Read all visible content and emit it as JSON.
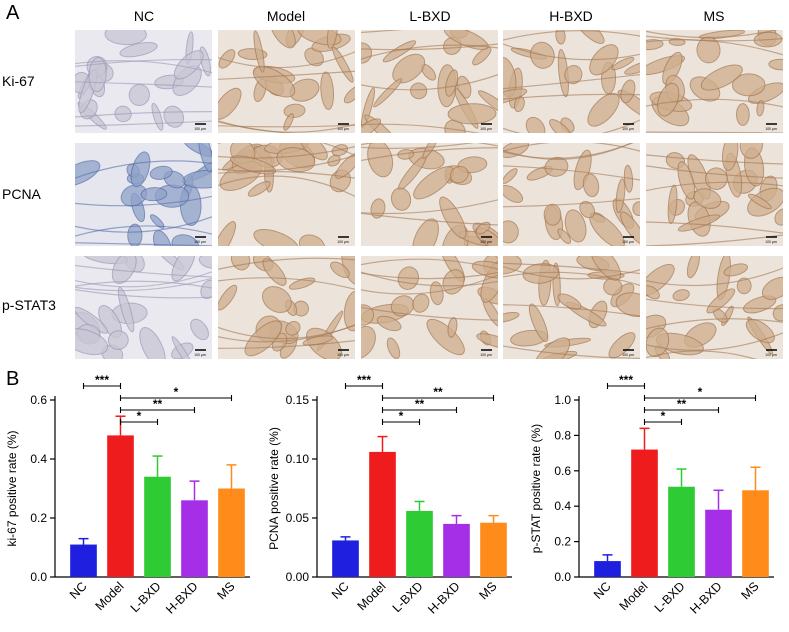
{
  "panel_a": {
    "letter": "A",
    "columns": [
      "NC",
      "Model",
      "L-BXD",
      "H-BXD",
      "MS"
    ],
    "rows": [
      "Ki-67",
      "PCNA",
      "p-STAT3"
    ],
    "scale_bar_label": "100 μm"
  },
  "panel_b": {
    "letter": "B"
  },
  "chart_data": [
    {
      "type": "bar",
      "categories": [
        "NC",
        "Model",
        "L-BXD",
        "H-BXD",
        "MS"
      ],
      "values": [
        0.11,
        0.48,
        0.34,
        0.26,
        0.3
      ],
      "errors": [
        0.02,
        0.065,
        0.07,
        0.065,
        0.08
      ],
      "colors": [
        "#1f1fe0",
        "#ee1c1c",
        "#2ecb35",
        "#a52fe6",
        "#ff8c1a"
      ],
      "ylabel": "ki-67 positive rate (%)",
      "ylim": [
        0,
        0.6
      ],
      "yticks": [
        "0.0",
        "0.2",
        "0.4",
        "0.6"
      ],
      "significance": [
        {
          "from": 0,
          "to": 1,
          "label": "***"
        },
        {
          "from": 1,
          "to": 2,
          "label": "*"
        },
        {
          "from": 1,
          "to": 3,
          "label": "**"
        },
        {
          "from": 1,
          "to": 4,
          "label": "*"
        }
      ]
    },
    {
      "type": "bar",
      "categories": [
        "NC",
        "Model",
        "L-BXD",
        "H-BXD",
        "MS"
      ],
      "values": [
        0.031,
        0.106,
        0.056,
        0.045,
        0.046
      ],
      "errors": [
        0.003,
        0.013,
        0.008,
        0.007,
        0.006
      ],
      "colors": [
        "#1f1fe0",
        "#ee1c1c",
        "#2ecb35",
        "#a52fe6",
        "#ff8c1a"
      ],
      "ylabel": "PCNA positive rate (%)",
      "ylim": [
        0,
        0.15
      ],
      "yticks": [
        "0.00",
        "0.05",
        "0.10",
        "0.15"
      ],
      "significance": [
        {
          "from": 0,
          "to": 1,
          "label": "***"
        },
        {
          "from": 1,
          "to": 2,
          "label": "*"
        },
        {
          "from": 1,
          "to": 3,
          "label": "**"
        },
        {
          "from": 1,
          "to": 4,
          "label": "**"
        }
      ]
    },
    {
      "type": "bar",
      "categories": [
        "NC",
        "Model",
        "L-BXD",
        "H-BXD",
        "MS"
      ],
      "values": [
        0.09,
        0.72,
        0.51,
        0.38,
        0.49
      ],
      "errors": [
        0.035,
        0.12,
        0.1,
        0.11,
        0.13
      ],
      "colors": [
        "#1f1fe0",
        "#ee1c1c",
        "#2ecb35",
        "#a52fe6",
        "#ff8c1a"
      ],
      "ylabel": "p-STAT positive rate (%)",
      "ylim": [
        0,
        1.0
      ],
      "yticks": [
        "0.0",
        "0.2",
        "0.4",
        "0.6",
        "0.8",
        "1.0"
      ],
      "significance": [
        {
          "from": 0,
          "to": 1,
          "label": "***"
        },
        {
          "from": 1,
          "to": 2,
          "label": "*"
        },
        {
          "from": 1,
          "to": 3,
          "label": "**"
        },
        {
          "from": 1,
          "to": 4,
          "label": "*"
        }
      ]
    }
  ]
}
